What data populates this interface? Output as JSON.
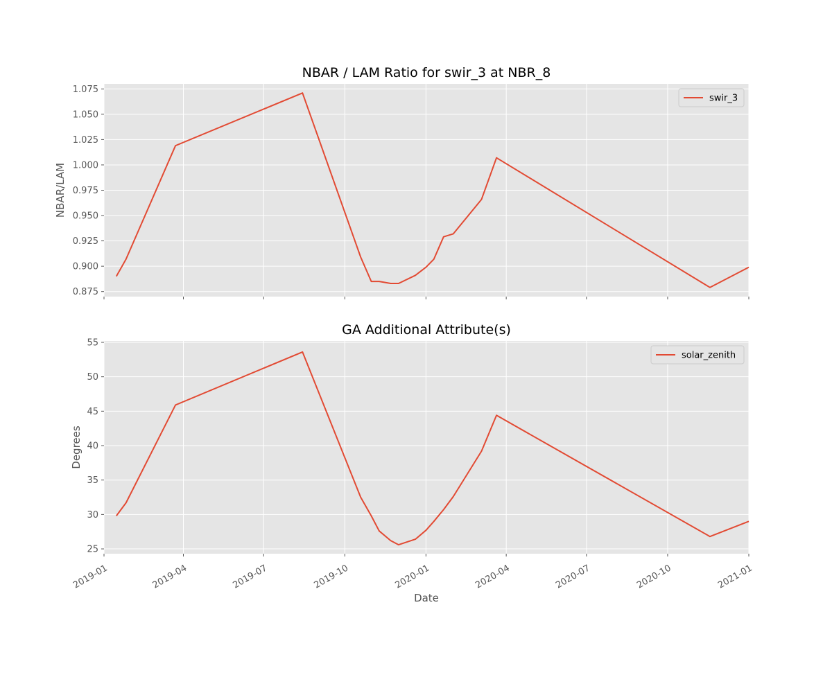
{
  "chart_data": [
    {
      "type": "line",
      "title": "NBAR / LAM Ratio for swir_3 at NBR_8",
      "xlabel": "",
      "ylabel": "NBAR/LAM",
      "xlim": [
        "2019-01-01",
        "2021-01-01"
      ],
      "ylim": [
        0.87,
        1.08
      ],
      "yticks": [
        "0.875",
        "0.900",
        "0.925",
        "0.950",
        "0.975",
        "1.000",
        "1.025",
        "1.050",
        "1.075"
      ],
      "grid": true,
      "legend": "top-right",
      "color": "#E24A33",
      "series": [
        {
          "name": "swir_3",
          "x": [
            "2019-01-15",
            "2019-01-26",
            "2019-03-23",
            "2019-08-14",
            "2019-10-19",
            "2019-10-31",
            "2019-11-09",
            "2019-11-22",
            "2019-12-01",
            "2019-12-20",
            "2020-01-01",
            "2020-01-10",
            "2020-01-21",
            "2020-02-01",
            "2020-03-04",
            "2020-03-21",
            "2020-11-18",
            "2021-01-01"
          ],
          "y": [
            0.89,
            0.907,
            1.019,
            1.071,
            0.909,
            0.885,
            0.885,
            0.883,
            0.883,
            0.891,
            0.899,
            0.907,
            0.929,
            0.932,
            0.966,
            1.007,
            0.879,
            0.899
          ]
        }
      ]
    },
    {
      "type": "line",
      "title": "GA Additional Attribute(s)",
      "xlabel": "Date",
      "ylabel": "Degrees",
      "xlim": [
        "2019-01-01",
        "2021-01-01"
      ],
      "ylim": [
        24.3,
        55.2
      ],
      "yticks": [
        "25",
        "30",
        "35",
        "40",
        "45",
        "50",
        "55"
      ],
      "xticks": [
        "2019-01",
        "2019-04",
        "2019-07",
        "2019-10",
        "2020-01",
        "2020-04",
        "2020-07",
        "2020-10",
        "2021-01"
      ],
      "grid": true,
      "legend": "top-right",
      "color": "#E24A33",
      "series": [
        {
          "name": "solar_zenith",
          "x": [
            "2019-01-15",
            "2019-01-26",
            "2019-03-23",
            "2019-08-14",
            "2019-10-19",
            "2019-10-31",
            "2019-11-09",
            "2019-11-22",
            "2019-12-01",
            "2019-12-20",
            "2020-01-01",
            "2020-01-10",
            "2020-01-21",
            "2020-02-01",
            "2020-03-04",
            "2020-03-21",
            "2020-11-18",
            "2021-01-01"
          ],
          "y": [
            29.8,
            31.7,
            45.9,
            53.6,
            32.5,
            29.8,
            27.6,
            26.2,
            25.6,
            26.4,
            27.7,
            29.0,
            30.7,
            32.6,
            39.2,
            44.4,
            26.8,
            29.0
          ]
        }
      ]
    }
  ]
}
